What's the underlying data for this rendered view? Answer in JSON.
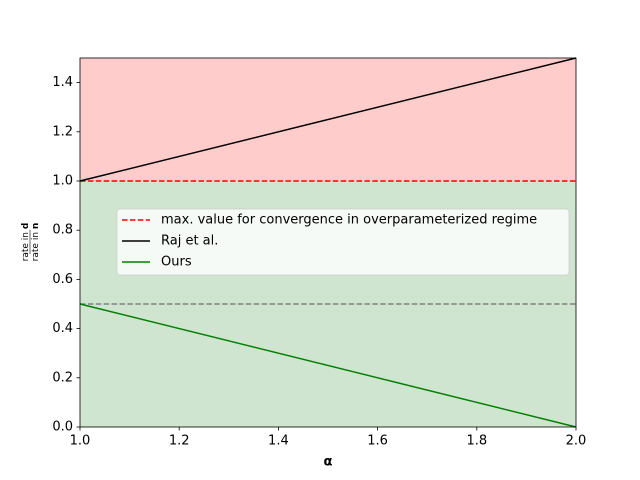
{
  "chart_data": {
    "type": "line",
    "x": [
      1,
      2
    ],
    "series": [
      {
        "name": "max. value for convergence in overparameterized regime",
        "color": "#ff0000",
        "dashed": true,
        "values": [
          1,
          1
        ]
      },
      {
        "name": "Raj et al.",
        "color": "#000000",
        "dashed": false,
        "values": [
          1,
          1.5
        ]
      },
      {
        "name": "Ours",
        "color": "#008000",
        "dashed": false,
        "values": [
          0.5,
          0
        ]
      }
    ],
    "reference_lines": [
      {
        "value": 0.5,
        "color": "#808080",
        "dashed": true
      }
    ],
    "shaded_regions": [
      {
        "from": 1,
        "to": 1.5,
        "color": "#ffcccc"
      },
      {
        "from": 0,
        "to": 1,
        "color": "#cfe5cf"
      }
    ],
    "xlabel": "α",
    "ylabel": {
      "numerator": {
        "text": "rate in",
        "symbol": "d"
      },
      "denominator": {
        "text": "rate in",
        "symbol": "n"
      }
    },
    "xlim": [
      1,
      2
    ],
    "ylim": [
      0,
      1.5
    ],
    "xticks": [
      {
        "value": 1,
        "label": "1.0"
      },
      1.2,
      1.4,
      1.6,
      1.8,
      {
        "value": 2,
        "label": "2.0"
      }
    ],
    "yticks": [
      {
        "value": 0,
        "label": "0.0"
      },
      0.2,
      0.4,
      0.6,
      0.8,
      {
        "value": 1,
        "label": "1.0"
      },
      1.2,
      1.4
    ],
    "legend": "center right"
  }
}
